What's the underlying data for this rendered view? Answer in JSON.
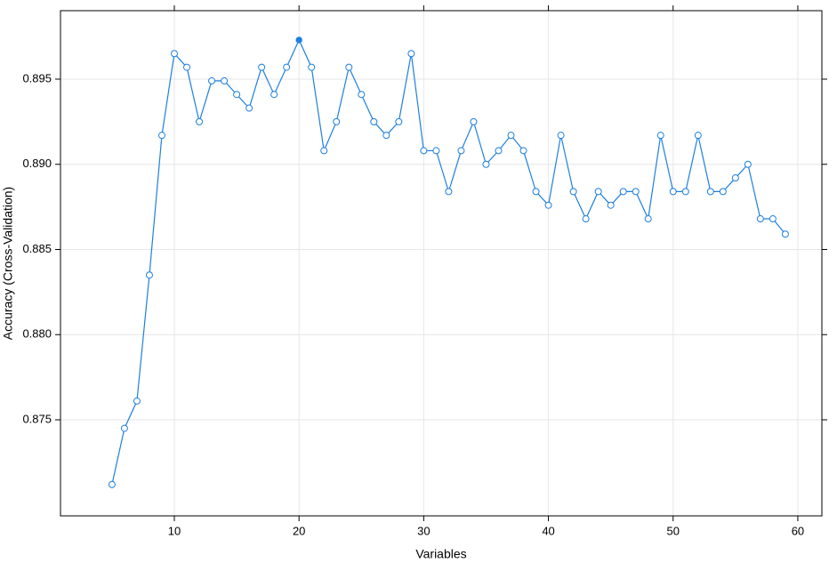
{
  "chart_data": {
    "type": "line",
    "x_label": "Variables",
    "y_label": "Accuracy (Cross-Validation)",
    "x": [
      5,
      6,
      7,
      8,
      9,
      10,
      11,
      12,
      13,
      14,
      15,
      16,
      17,
      18,
      19,
      20,
      21,
      22,
      23,
      24,
      25,
      26,
      27,
      28,
      29,
      30,
      31,
      32,
      33,
      34,
      35,
      36,
      37,
      38,
      39,
      40,
      41,
      42,
      43,
      44,
      45,
      46,
      47,
      48,
      49,
      50,
      51,
      52,
      53,
      54,
      55,
      56,
      57,
      58,
      59
    ],
    "series": [
      {
        "color": "#1e7fe0",
        "values": [
          0.8712,
          0.8745,
          0.8761,
          0.8835,
          0.8917,
          0.8965,
          0.8957,
          0.8925,
          0.8949,
          0.8949,
          0.8941,
          0.8933,
          0.8957,
          0.8941,
          0.8957,
          0.8973,
          0.8957,
          0.8908,
          0.8925,
          0.8957,
          0.8941,
          0.8925,
          0.8917,
          0.8925,
          0.8965,
          0.8908,
          0.8908,
          0.8884,
          0.8908,
          0.8925,
          0.89,
          0.8908,
          0.8917,
          0.8908,
          0.8884,
          0.8876,
          0.8917,
          0.8884,
          0.8868,
          0.8884,
          0.8876,
          0.8884,
          0.8884,
          0.8868,
          0.8917,
          0.8884,
          0.8884,
          0.8917,
          0.8884,
          0.8884,
          0.8892,
          0.89,
          0.8868,
          0.8868,
          0.8859
        ]
      }
    ],
    "xlim": [
      0.87,
      61.93
    ],
    "ylim": [
      0.86936,
      0.89902
    ],
    "xticks": [
      10,
      20,
      30,
      40,
      50,
      60
    ],
    "yticks": [
      0.875,
      {
        "value": 0.88,
        "label": "0.880"
      },
      0.885,
      {
        "value": 0.89,
        "label": "0.890"
      },
      0.895
    ],
    "grid": true
  }
}
